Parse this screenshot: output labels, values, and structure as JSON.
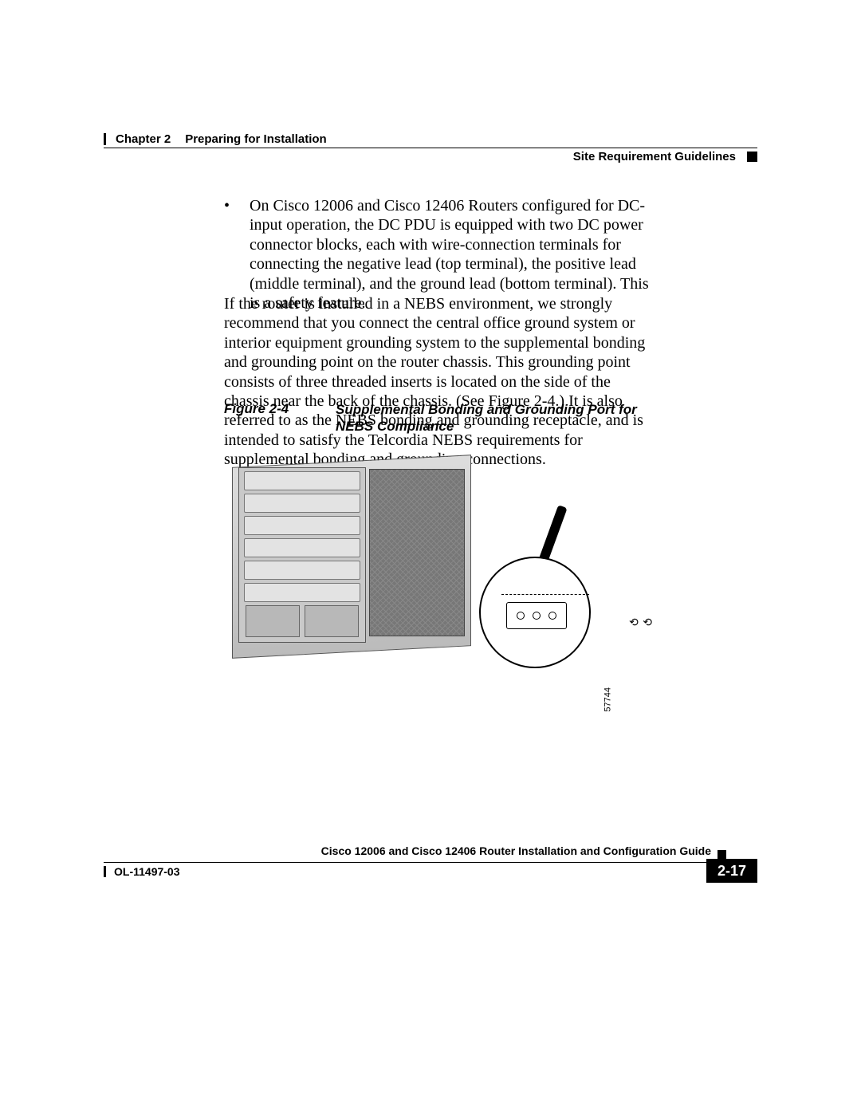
{
  "header": {
    "chapter_label": "Chapter 2",
    "chapter_title": "Preparing for Installation",
    "section_title": "Site Requirement Guidelines"
  },
  "body": {
    "bullet_text": "On Cisco 12006 and Cisco 12406 Routers configured for DC-input operation, the DC PDU is equipped with two DC power connector blocks, each with wire-connection terminals for connecting the negative lead (top terminal), the positive lead (middle terminal), and the ground lead (bottom terminal). This is a safety feature.",
    "paragraph_text": "If the router is installed in a NEBS environment, we strongly recommend that you connect the central office ground system or interior equipment grounding system to the supplemental bonding and grounding point on the router chassis. This grounding point consists of three threaded inserts is located on the side of the chassis near the back of the chassis. (See Figure 2-4.) It is also referred to as the NEBS bonding and grounding receptacle, and is intended to satisfy the Telcordia NEBS requirements for supplemental bonding and grounding connections."
  },
  "figure": {
    "label": "Figure 2-4",
    "title": "Supplemental Bonding and Grounding Port for NEBS Compliance",
    "image_ref": "57744"
  },
  "footer": {
    "guide_title": "Cisco 12006 and Cisco 12406 Router Installation and Configuration Guide",
    "doc_number": "OL-11497-03",
    "page_number": "2-17"
  },
  "colors": {
    "text": "#000000",
    "background": "#ffffff"
  },
  "fonts": {
    "body_family": "Times New Roman",
    "body_size_pt": 15,
    "heading_family": "Arial",
    "caption_style": "bold italic"
  }
}
